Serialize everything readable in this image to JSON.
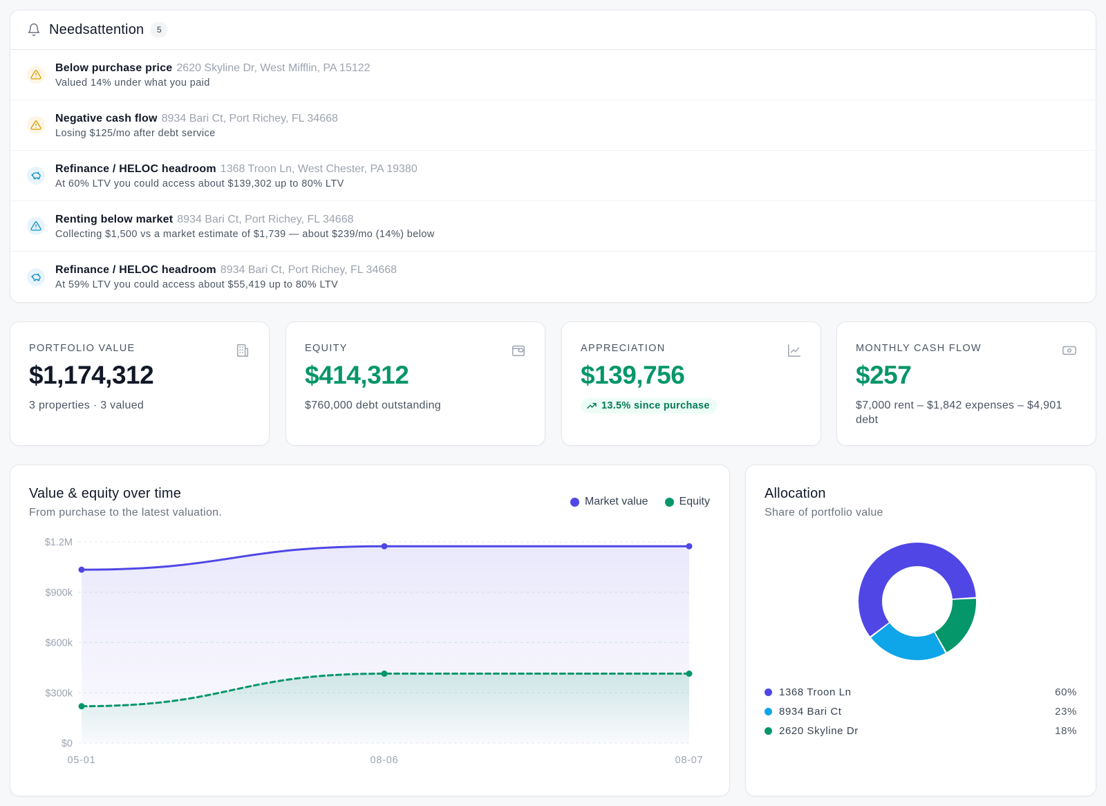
{
  "attention": {
    "title": "Needsattention",
    "count": "5",
    "items": [
      {
        "kind": "warn",
        "title": "Below purchase price",
        "address": "2620 Skyline Dr, West Mifflin, PA 15122",
        "detail": "Valued 14% under what you paid",
        "icon": "warning-icon"
      },
      {
        "kind": "warn",
        "title": "Negative cash flow",
        "address": "8934 Bari Ct, Port Richey, FL 34668",
        "detail": "Losing $125/mo after debt service",
        "icon": "warning-icon"
      },
      {
        "kind": "info",
        "title": "Refinance / HELOC headroom",
        "address": "1368 Troon Ln, West Chester, PA 19380",
        "detail": "At 60% LTV you could access about $139,302 up to 80% LTV",
        "icon": "piggy-bank-icon"
      },
      {
        "kind": "info",
        "title": "Renting below market",
        "address": "8934 Bari Ct, Port Richey, FL 34668",
        "detail": "Collecting $1,500 vs a market estimate of $1,739 — about $239/mo (14%) below",
        "icon": "alert-triangle-icon"
      },
      {
        "kind": "info",
        "title": "Refinance / HELOC headroom",
        "address": "8934 Bari Ct, Port Richey, FL 34668",
        "detail": "At 59% LTV you could access about $55,419 up to 80% LTV",
        "icon": "piggy-bank-icon"
      }
    ]
  },
  "kpis": [
    {
      "label": "PORTFOLIO VALUE",
      "value": "$1,174,312",
      "sub": "3 properties · 3 valued",
      "icon": "building-icon",
      "tone": "dark"
    },
    {
      "label": "EQUITY",
      "value": "$414,312",
      "sub": "$760,000 debt outstanding",
      "icon": "wallet-icon",
      "tone": "green"
    },
    {
      "label": "APPRECIATION",
      "value": "$139,756",
      "pill": "13.5% since purchase",
      "icon": "chart-line-icon",
      "tone": "green"
    },
    {
      "label": "MONTHLY CASH FLOW",
      "value": "$257",
      "sub": "$7,000 rent – $1,842 expenses – $4,901 debt",
      "icon": "banknote-icon",
      "tone": "green"
    }
  ],
  "colors": {
    "market": "#4f46e5",
    "equity": "#059669",
    "alloc": [
      "#4f46e5",
      "#0ea5e9",
      "#059669"
    ],
    "warn": "#d99a06",
    "info": "#0e8fc4"
  },
  "chart": {
    "title": "Value & equity over time",
    "subtitle": "From purchase to the latest valuation.",
    "legend": [
      "Market value",
      "Equity"
    ]
  },
  "chart_data": [
    {
      "type": "area",
      "title": "Value & equity over time",
      "subtitle": "From purchase to the latest valuation.",
      "x": [
        "05-01",
        "08-06",
        "08-07"
      ],
      "series": [
        {
          "name": "Market value",
          "values": [
            1034556,
            1174312,
            1174312
          ]
        },
        {
          "name": "Equity",
          "values": [
            220000,
            414312,
            414312
          ]
        }
      ],
      "yticks": [
        "$0",
        "$300k",
        "$600k",
        "$900k",
        "$1.2M"
      ],
      "ytick_values": [
        0,
        300000,
        600000,
        900000,
        1200000
      ],
      "ylim": [
        0,
        1200000
      ],
      "grid": true,
      "legend": "top-right"
    },
    {
      "type": "pie",
      "title": "Allocation",
      "subtitle": "Share of portfolio value",
      "labels": [
        "1368 Troon Ln",
        "8934 Bari Ct",
        "2620 Skyline Dr"
      ],
      "values": [
        60,
        23,
        18
      ],
      "display": [
        "60%",
        "23%",
        "18%"
      ],
      "legend": "bottom"
    }
  ]
}
